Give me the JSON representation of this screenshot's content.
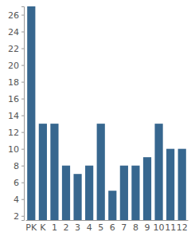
{
  "chart_data": {
    "type": "bar",
    "categories": [
      "PK",
      "K",
      "1",
      "2",
      "3",
      "4",
      "5",
      "6",
      "7",
      "8",
      "9",
      "10",
      "11",
      "12"
    ],
    "values": [
      27,
      13,
      13,
      8,
      7,
      8,
      13,
      5,
      8,
      8,
      9,
      13,
      10,
      10
    ],
    "color": "#37678f",
    "ylim": [
      1.5,
      27
    ],
    "yticks": [
      2,
      4,
      6,
      8,
      10,
      12,
      14,
      16,
      18,
      20,
      22,
      24,
      26
    ],
    "grid": false
  }
}
